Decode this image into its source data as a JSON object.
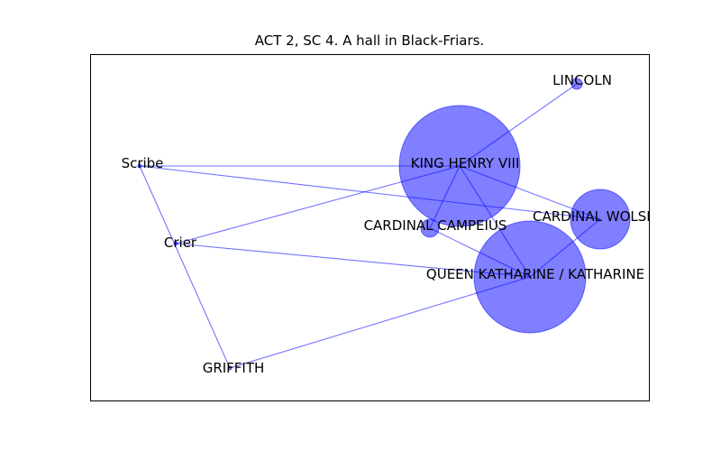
{
  "title": "ACT 2, SC 4. A hall in Black-Friars.",
  "colors": {
    "node": "#0000ff",
    "edge": "#0000ff",
    "frame": "#000000"
  },
  "nodes": [
    {
      "id": "lincoln",
      "label": "LINCOLN"
    },
    {
      "id": "henry",
      "label": "KING HENRY VIII"
    },
    {
      "id": "scribe",
      "label": "Scribe"
    },
    {
      "id": "wolsey",
      "label": "CARDINAL WOLSEY"
    },
    {
      "id": "campeius",
      "label": "CARDINAL CAMPEIUS"
    },
    {
      "id": "crier",
      "label": "Crier"
    },
    {
      "id": "katharine",
      "label": "QUEEN KATHARINE / KATHARINE"
    },
    {
      "id": "griffith",
      "label": "GRIFFITH"
    }
  ],
  "edges": [
    [
      "henry",
      "lincoln"
    ],
    [
      "henry",
      "scribe"
    ],
    [
      "henry",
      "wolsey"
    ],
    [
      "henry",
      "campeius"
    ],
    [
      "henry",
      "crier"
    ],
    [
      "henry",
      "katharine"
    ],
    [
      "scribe",
      "wolsey"
    ],
    [
      "scribe",
      "griffith"
    ],
    [
      "crier",
      "katharine"
    ],
    [
      "katharine",
      "wolsey"
    ],
    [
      "katharine",
      "campeius"
    ],
    [
      "katharine",
      "griffith"
    ]
  ]
}
